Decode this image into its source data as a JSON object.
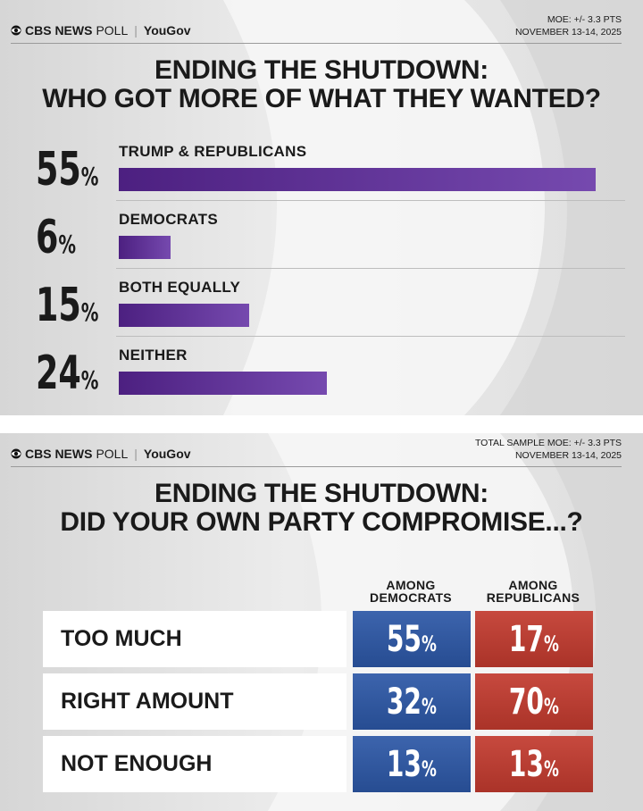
{
  "chart_data": [
    {
      "type": "bar",
      "logo": {
        "name": "CBS NEWS",
        "product": "POLL",
        "partner": "YouGov"
      },
      "moe": "MOE: +/- 3.3 PTS",
      "date": "NOVEMBER 13-14, 2025",
      "title": "ENDING THE SHUTDOWN:",
      "subtitle": "WHO GOT MORE OF WHAT THEY WANTED?",
      "categories": [
        "TRUMP & REPUBLICANS",
        "DEMOCRATS",
        "BOTH EQUALLY",
        "NEITHER"
      ],
      "values": [
        55,
        6,
        15,
        24
      ],
      "value_labels": [
        "55%",
        "6%",
        "15%",
        "24%"
      ],
      "color": "#6a3aa8"
    },
    {
      "type": "table",
      "logo": {
        "name": "CBS NEWS",
        "product": "POLL",
        "partner": "YouGov"
      },
      "moe": "TOTAL SAMPLE MOE: +/- 3.3 PTS",
      "date": "NOVEMBER 13-14, 2025",
      "title": "ENDING THE SHUTDOWN:",
      "subtitle": "DID YOUR OWN PARTY COMPROMISE...?",
      "columns": [
        "AMONG DEMOCRATS",
        "AMONG REPUBLICANS"
      ],
      "column_colors": [
        "#2c57a6",
        "#c23a2e"
      ],
      "rows": [
        {
          "label": "TOO MUCH",
          "cells": [
            "55%",
            "17%"
          ]
        },
        {
          "label": "RIGHT AMOUNT",
          "cells": [
            "32%",
            "70%"
          ]
        },
        {
          "label": "NOT ENOUGH",
          "cells": [
            "13%",
            "13%"
          ]
        }
      ]
    }
  ]
}
